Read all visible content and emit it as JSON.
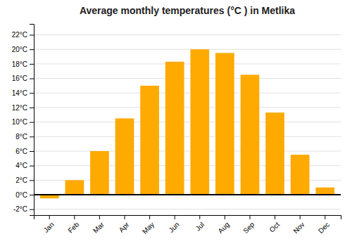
{
  "chart_data": {
    "type": "bar",
    "title": "Average monthly temperatures (°C ) in Metlika",
    "categories": [
      "Jan",
      "Feb",
      "Mar",
      "Apr",
      "May",
      "Jun",
      "Jul",
      "Aug",
      "Sep",
      "Oct",
      "Nov",
      "Dec"
    ],
    "values": [
      -0.5,
      2.0,
      6.0,
      10.5,
      15.0,
      18.3,
      20.0,
      19.5,
      16.5,
      11.3,
      5.5,
      1.0
    ],
    "color": "#FFAA00",
    "ylim": [
      -2.8,
      23.5
    ],
    "yticks": [
      {
        "value": 22,
        "label": "22°C"
      },
      {
        "value": 20,
        "label": "20°C"
      },
      {
        "value": 18,
        "label": "18°C"
      },
      {
        "value": 16,
        "label": "16°C"
      },
      {
        "value": 14,
        "label": "14°C"
      },
      {
        "value": 12,
        "label": "12°C"
      },
      {
        "value": 10,
        "label": "10°C"
      },
      {
        "value": 8,
        "label": "8°C"
      },
      {
        "value": 6,
        "label": "6°C"
      },
      {
        "value": 4,
        "label": "4°C"
      },
      {
        "value": 2,
        "label": "2°C"
      },
      {
        "value": 0,
        "label": "0°C"
      },
      {
        "value": -2,
        "label": "-2°C"
      }
    ],
    "grid": true
  }
}
